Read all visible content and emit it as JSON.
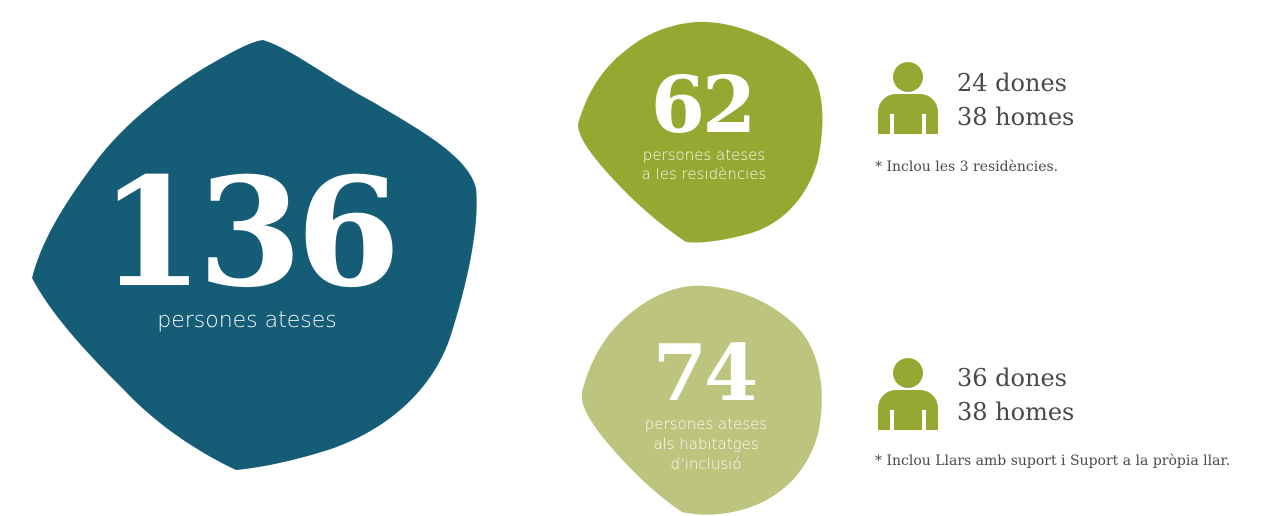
{
  "colors": {
    "main_blob": "#155c76",
    "residences_blob": "#95a831",
    "housing_blob": "#bcc47e",
    "person_icon": "#95a831",
    "text_dark": "#4a4a4a"
  },
  "main": {
    "number": "136",
    "caption": "persones ateses"
  },
  "residences": {
    "number": "62",
    "caption_line1": "persones ateses",
    "caption_line2": "a les residències",
    "women": "24 dones",
    "men": "38 homes",
    "note": "* Inclou les 3 residències."
  },
  "housing": {
    "number": "74",
    "caption_line1": "persones ateses",
    "caption_line2": "als habitatges",
    "caption_line3": "d’inclusió",
    "women": "36 dones",
    "men": "38 homes",
    "note": "* Inclou Llars amb suport i Suport a la pròpia llar."
  },
  "icons": [
    "person-icon"
  ]
}
